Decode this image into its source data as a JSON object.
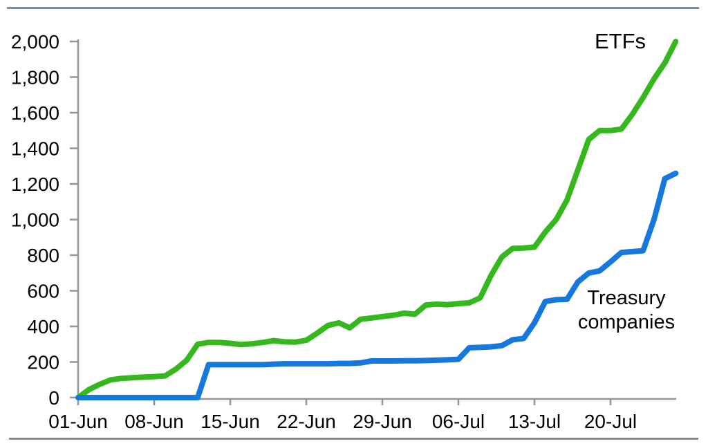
{
  "page": {
    "background": "#ffffff"
  },
  "rules": {
    "color": "#7f8b96"
  },
  "chart_data": {
    "type": "line",
    "title": "",
    "xlabel": "",
    "ylabel": "",
    "grid": false,
    "legend_position": "inline-annotations",
    "axis_color": "#949494",
    "text_color": "#000000",
    "ylim": [
      0,
      2000
    ],
    "ytick_step": 200,
    "ytick_labels": [
      "0",
      "200",
      "400",
      "600",
      "800",
      "1,000",
      "1,200",
      "1,400",
      "1,600",
      "1,800",
      "2,000"
    ],
    "xtick_labels": [
      "01-Jun",
      "08-Jun",
      "15-Jun",
      "22-Jun",
      "29-Jun",
      "06-Jul",
      "13-Jul",
      "20-Jul"
    ],
    "xtick_day_interval": 7,
    "x_dates": [
      "01-Jun",
      "02-Jun",
      "03-Jun",
      "04-Jun",
      "05-Jun",
      "06-Jun",
      "07-Jun",
      "08-Jun",
      "09-Jun",
      "10-Jun",
      "11-Jun",
      "12-Jun",
      "13-Jun",
      "14-Jun",
      "15-Jun",
      "16-Jun",
      "17-Jun",
      "18-Jun",
      "19-Jun",
      "20-Jun",
      "21-Jun",
      "22-Jun",
      "23-Jun",
      "24-Jun",
      "25-Jun",
      "26-Jun",
      "27-Jun",
      "28-Jun",
      "29-Jun",
      "30-Jun",
      "01-Jul",
      "02-Jul",
      "03-Jul",
      "04-Jul",
      "05-Jul",
      "06-Jul",
      "07-Jul",
      "08-Jul",
      "09-Jul",
      "10-Jul",
      "11-Jul",
      "12-Jul",
      "13-Jul",
      "14-Jul",
      "15-Jul",
      "16-Jul",
      "17-Jul",
      "18-Jul",
      "19-Jul",
      "20-Jul",
      "21-Jul",
      "22-Jul",
      "23-Jul",
      "24-Jul",
      "25-Jul",
      "26-Jul"
    ],
    "series": [
      {
        "name": "ETFs",
        "color": "#35b81e",
        "values": [
          0,
          45,
          75,
          100,
          108,
          112,
          115,
          118,
          122,
          160,
          210,
          300,
          310,
          310,
          305,
          298,
          302,
          310,
          320,
          313,
          312,
          322,
          362,
          405,
          420,
          392,
          440,
          447,
          455,
          462,
          474,
          468,
          520,
          525,
          522,
          528,
          532,
          560,
          685,
          790,
          838,
          840,
          845,
          930,
          1000,
          1110,
          1280,
          1450,
          1500,
          1500,
          1508,
          1590,
          1685,
          1790,
          1880,
          2000
        ]
      },
      {
        "name": "Treasury companies",
        "color": "#1677dd",
        "values": [
          0,
          0,
          0,
          0,
          0,
          0,
          0,
          0,
          0,
          0,
          0,
          0,
          185,
          185,
          185,
          185,
          185,
          185,
          188,
          190,
          190,
          190,
          190,
          190,
          192,
          192,
          195,
          206,
          206,
          206,
          207,
          207,
          208,
          210,
          212,
          215,
          280,
          282,
          285,
          292,
          325,
          332,
          420,
          540,
          550,
          552,
          650,
          700,
          712,
          762,
          815,
          820,
          825,
          1000,
          1230,
          1260
        ]
      }
    ],
    "annotations": {
      "etfs_label": "ETFs",
      "treasury_label_line1": "Treasury",
      "treasury_label_line2": "companies"
    }
  }
}
